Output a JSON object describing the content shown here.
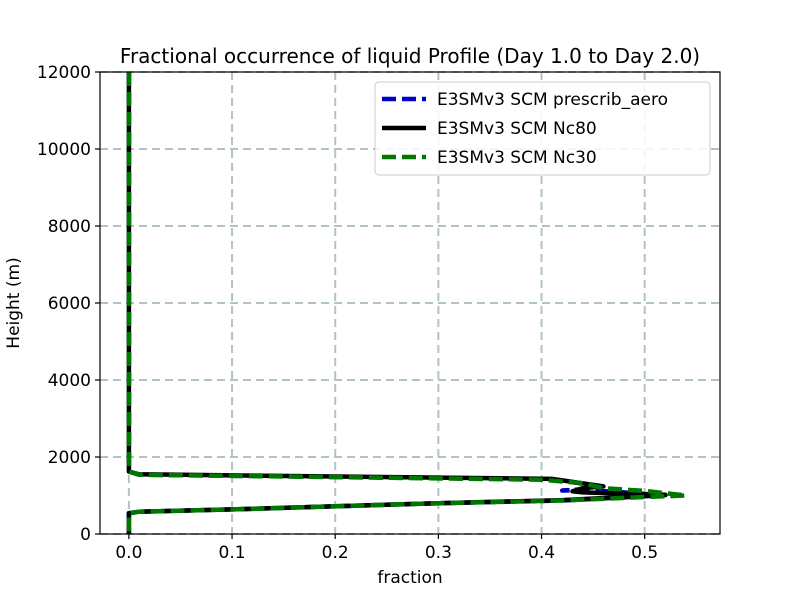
{
  "chart_data": {
    "type": "line",
    "title": "Fractional occurrence of liquid Profile (Day 1.0 to Day 2.0)",
    "xlabel": "fraction",
    "ylabel": "Height (m)",
    "xlim": [
      -0.028,
      0.573
    ],
    "ylim": [
      0,
      12000
    ],
    "xticks": [
      0.0,
      0.1,
      0.2,
      0.3,
      0.4,
      0.5
    ],
    "xtick_labels": [
      "0.0",
      "0.1",
      "0.2",
      "0.3",
      "0.4",
      "0.5"
    ],
    "yticks": [
      0,
      2000,
      4000,
      6000,
      8000,
      10000,
      12000
    ],
    "ytick_labels": [
      "0",
      "2000",
      "4000",
      "6000",
      "8000",
      "10000",
      "12000"
    ],
    "grid": true,
    "legend_position": "top-right",
    "series": [
      {
        "name": "E3SMv3 SCM prescrib_aero",
        "color": "#0000cc",
        "style": "dashed",
        "points": [
          [
            0,
            12000
          ],
          [
            0,
            3000
          ],
          [
            0,
            2000
          ],
          [
            0.0,
            1620
          ],
          [
            0.01,
            1540
          ],
          [
            0.41,
            1420
          ],
          [
            0.455,
            1250
          ],
          [
            0.445,
            1170
          ],
          [
            0.42,
            1130
          ],
          [
            0.445,
            1140
          ],
          [
            0.48,
            1080
          ],
          [
            0.5,
            1040
          ],
          [
            0.52,
            1010
          ],
          [
            0.5,
            980
          ],
          [
            0.42,
            870
          ],
          [
            0.3,
            800
          ],
          [
            0.2,
            720
          ],
          [
            0.1,
            640
          ],
          [
            0.01,
            580
          ],
          [
            0.0,
            540
          ],
          [
            0.0,
            300
          ],
          [
            0.0,
            0
          ]
        ]
      },
      {
        "name": "E3SMv3 SCM Nc80",
        "color": "#000000",
        "style": "solid",
        "points": [
          [
            0,
            12000
          ],
          [
            0,
            3000
          ],
          [
            0,
            2000
          ],
          [
            0.0,
            1620
          ],
          [
            0.01,
            1550
          ],
          [
            0.41,
            1430
          ],
          [
            0.46,
            1240
          ],
          [
            0.44,
            1190
          ],
          [
            0.43,
            1110
          ],
          [
            0.44,
            1080
          ],
          [
            0.48,
            1050
          ],
          [
            0.52,
            1020
          ],
          [
            0.5,
            990
          ],
          [
            0.42,
            880
          ],
          [
            0.3,
            800
          ],
          [
            0.2,
            720
          ],
          [
            0.1,
            640
          ],
          [
            0.01,
            580
          ],
          [
            0.0,
            540
          ],
          [
            0.0,
            300
          ],
          [
            0.0,
            0
          ]
        ]
      },
      {
        "name": "E3SMv3 SCM Nc30",
        "color": "#007700",
        "style": "dashed",
        "points": [
          [
            0,
            12000
          ],
          [
            0,
            3000
          ],
          [
            0,
            2000
          ],
          [
            0.0,
            1620
          ],
          [
            0.01,
            1540
          ],
          [
            0.4,
            1410
          ],
          [
            0.44,
            1320
          ],
          [
            0.46,
            1190
          ],
          [
            0.5,
            1120
          ],
          [
            0.54,
            1000
          ],
          [
            0.5,
            960
          ],
          [
            0.42,
            870
          ],
          [
            0.3,
            800
          ],
          [
            0.2,
            720
          ],
          [
            0.1,
            640
          ],
          [
            0.01,
            580
          ],
          [
            0.0,
            540
          ],
          [
            0.0,
            300
          ],
          [
            0.0,
            0
          ]
        ]
      }
    ]
  }
}
